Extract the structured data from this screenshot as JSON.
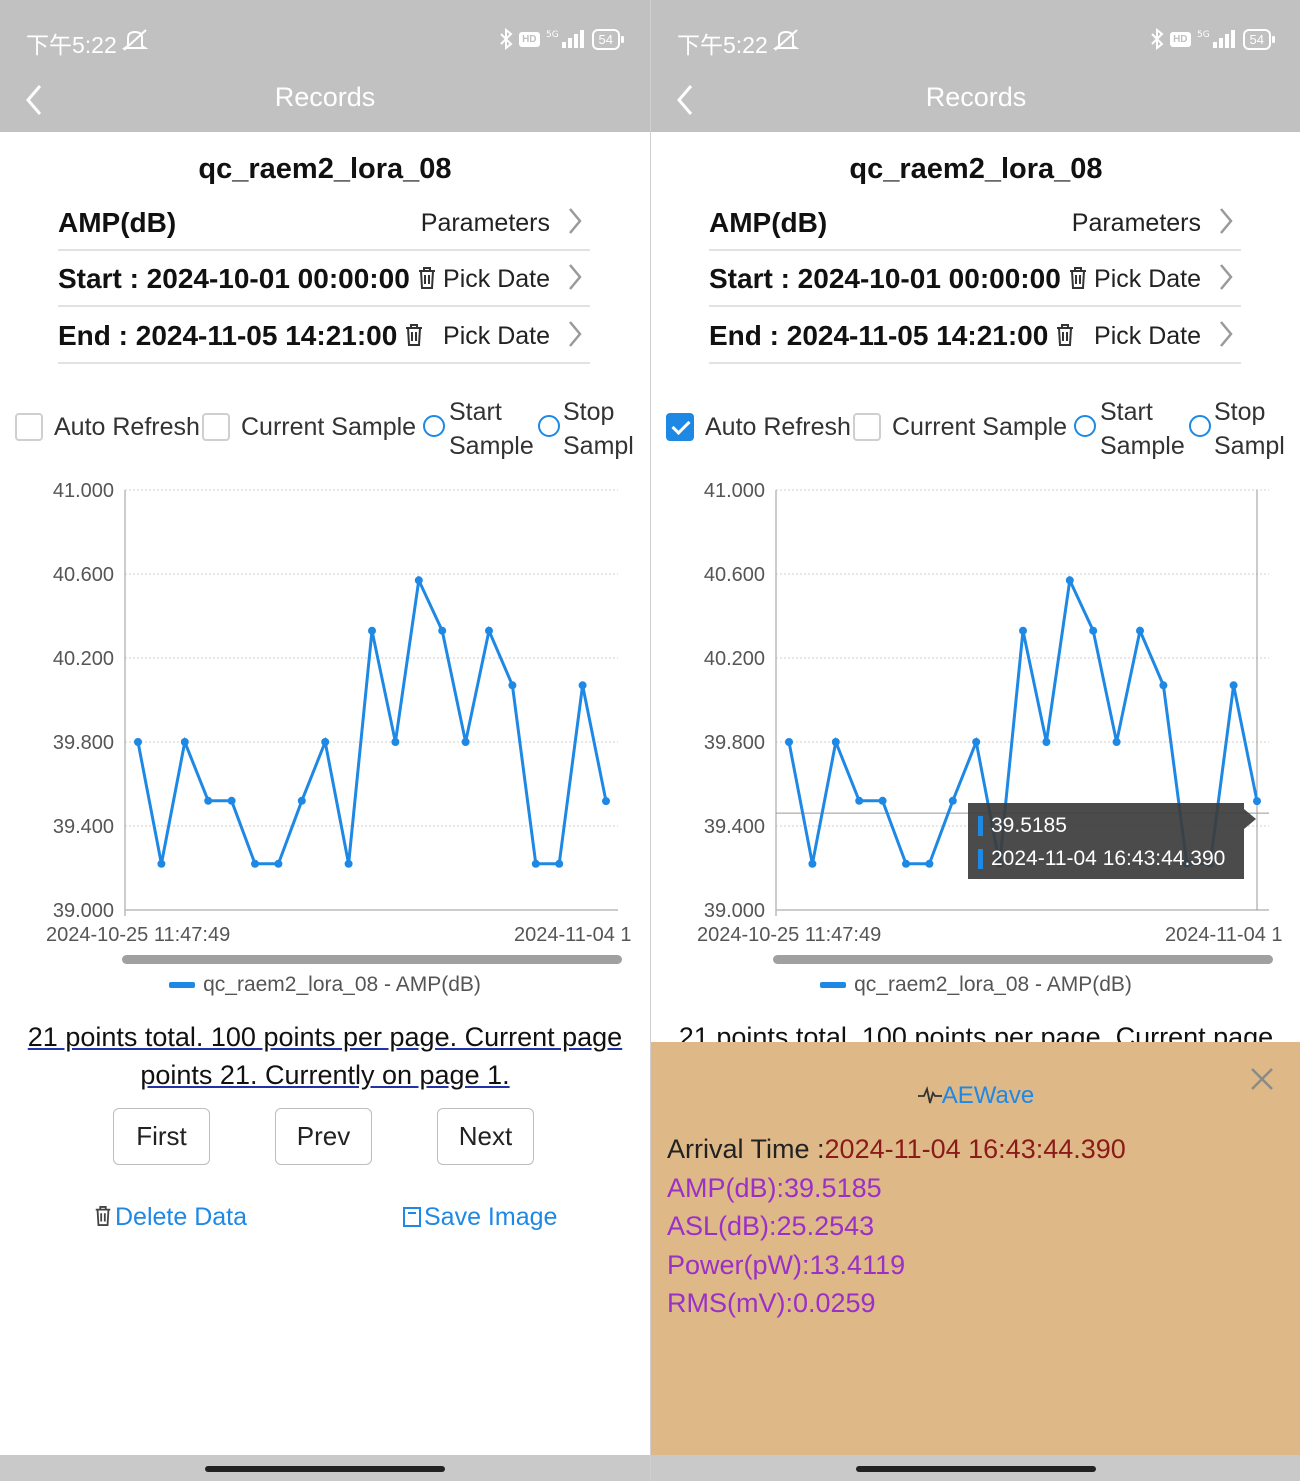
{
  "status_bar": {
    "time": "下午5:22",
    "network": "5G",
    "battery": "54"
  },
  "nav": {
    "title": "Records"
  },
  "device_title": "qc_raem2_lora_08",
  "parameter_row": {
    "label": "AMP(dB)",
    "action": "Parameters"
  },
  "start_row": {
    "label": "Start : 2024-10-01 00:00:00",
    "action": "Pick Date"
  },
  "end_row": {
    "label": "End : 2024-11-05 14:21:00",
    "action": "Pick Date"
  },
  "controls": {
    "auto_refresh": "Auto Refresh",
    "current_sample": "Current Sample",
    "start_sample_1": "Start",
    "start_sample_2": "Sample",
    "stop_sample_1": "Stop",
    "stop_sample_2": "Sampl"
  },
  "left_panel": {
    "auto_refresh_checked": false
  },
  "right_panel": {
    "auto_refresh_checked": true
  },
  "chart_data": {
    "type": "line",
    "x_first_label": "2024-10-25 11:47:49",
    "x_last_label": "2024-11-04 1",
    "ylim": [
      39.0,
      41.0
    ],
    "y_ticks": [
      "41.000",
      "40.600",
      "40.200",
      "39.800",
      "39.400",
      "39.000"
    ],
    "series": [
      {
        "name": "qc_raem2_lora_08 - AMP(dB)",
        "color": "#1e88e5",
        "values": [
          39.8,
          39.22,
          39.8,
          39.52,
          39.52,
          39.22,
          39.22,
          39.52,
          39.8,
          39.22,
          40.33,
          39.8,
          40.57,
          40.33,
          39.8,
          40.33,
          40.07,
          39.22,
          39.22,
          40.07,
          39.5185
        ]
      }
    ]
  },
  "legend": "qc_raem2_lora_08 - AMP(dB)",
  "page_info": "21 points total. 100 points per page. Current page points 21. Currently on page 1.",
  "page_info_clipped": "21 points total. 100 points per page. Current page",
  "pager": {
    "first": "First",
    "prev": "Prev",
    "next": "Next"
  },
  "actions": {
    "delete": "Delete Data",
    "save": "Save Image"
  },
  "tooltip": {
    "value": "39.5185",
    "time": "2024-11-04 16:43:44.390"
  },
  "popup": {
    "title": "AEWave",
    "arrival_label": "Arrival Time :",
    "arrival_value": "2024-11-04 16:43:44.390",
    "amp": "AMP(dB):39.5185",
    "asl": "ASL(dB):25.2543",
    "power": "Power(pW):13.4119",
    "rms": "RMS(mV):0.0259"
  },
  "colors": {
    "accent": "#1e88e5",
    "popup_bg": "#deb887",
    "arrival_value": "#8b1a1a",
    "popup_fields": "#9b30c8"
  }
}
